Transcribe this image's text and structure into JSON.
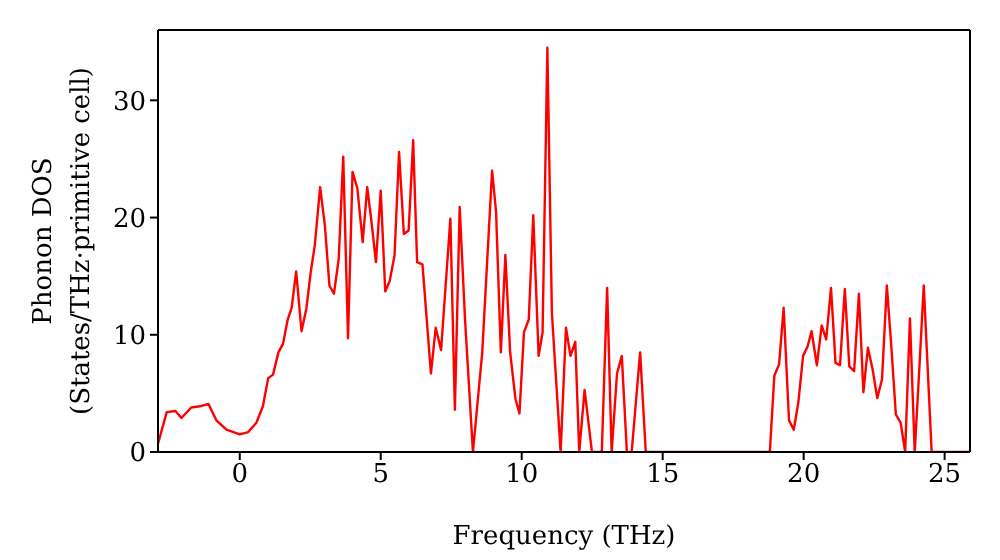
{
  "chart_data": {
    "type": "line",
    "xlabel": "Frequency (THz)",
    "ylabel": "Phonon DOS\n(States/THz·primitive cell)",
    "xlim": [
      -2.9,
      25.9
    ],
    "ylim": [
      0,
      36
    ],
    "xticks": [
      0,
      5,
      10,
      15,
      20,
      25
    ],
    "yticks": [
      0,
      10,
      20,
      30
    ],
    "marker": "none",
    "line_style": "solid",
    "series": [
      {
        "color": "#ff0000",
        "x": [
          -2.9,
          -2.59,
          -2.28,
          -2.07,
          -1.72,
          -1.41,
          -1.11,
          -0.83,
          -0.47,
          0,
          0.3,
          0.59,
          0.82,
          1.01,
          1.18,
          1.37,
          1.53,
          1.7,
          1.84,
          2.0,
          2.19,
          2.36,
          2.52,
          2.66,
          2.85,
          3.02,
          3.18,
          3.34,
          3.51,
          3.67,
          3.84,
          4.0,
          4.17,
          4.36,
          4.52,
          4.66,
          4.83,
          5.0,
          5.16,
          5.32,
          5.49,
          5.65,
          5.82,
          5.99,
          6.15,
          6.29,
          6.48,
          6.78,
          6.95,
          7.14,
          7.47,
          7.63,
          7.8,
          7.99,
          8.27,
          8.6,
          8.95,
          9.09,
          9.26,
          9.42,
          9.59,
          9.78,
          9.92,
          10.08,
          10.25,
          10.41,
          10.6,
          10.74,
          10.91,
          11.07,
          11.38,
          11.57,
          11.73,
          11.9,
          12.04,
          12.23,
          12.49,
          12.84,
          13.03,
          13.19,
          13.38,
          13.55,
          13.73,
          13.9,
          14.2,
          14.4,
          18.8,
          18.96,
          19.13,
          19.29,
          19.48,
          19.65,
          19.81,
          19.98,
          20.14,
          20.28,
          20.47,
          20.64,
          20.8,
          20.97,
          21.13,
          21.29,
          21.46,
          21.62,
          21.79,
          21.96,
          22.12,
          22.28,
          22.45,
          22.61,
          22.78,
          22.95,
          23.11,
          23.27,
          23.44,
          23.6,
          23.77,
          23.94,
          24.1,
          24.26,
          24.54,
          25.9
        ],
        "values": [
          0.7,
          3.4,
          3.5,
          2.9,
          3.8,
          3.9,
          4.1,
          2.7,
          1.9,
          1.5,
          1.7,
          2.5,
          3.9,
          6.3,
          6.6,
          8.5,
          9.2,
          11.3,
          12.3,
          15.4,
          10.3,
          12.2,
          15.4,
          17.6,
          22.6,
          19.3,
          14.2,
          13.5,
          16.5,
          25.2,
          9.7,
          23.9,
          22.5,
          17.9,
          22.6,
          19.9,
          16.2,
          22.3,
          13.7,
          14.6,
          16.8,
          25.6,
          18.6,
          18.9,
          26.6,
          16.2,
          16.0,
          6.7,
          10.6,
          8.7,
          19.9,
          3.6,
          20.9,
          11.3,
          0,
          8.5,
          24.0,
          20.5,
          8.5,
          16.8,
          8.5,
          4.5,
          3.3,
          10.2,
          11.3,
          20.2,
          8.2,
          10.2,
          34.5,
          11.9,
          0,
          10.6,
          8.2,
          9.4,
          0,
          5.3,
          0,
          0,
          14.0,
          0,
          6.7,
          8.2,
          0,
          0,
          8.5,
          0,
          0,
          6.5,
          7.5,
          12.3,
          2.7,
          1.9,
          4.2,
          8.2,
          9.0,
          10.3,
          7.4,
          10.8,
          9.6,
          14.0,
          7.6,
          7.4,
          13.9,
          7.3,
          6.9,
          13.5,
          5.1,
          8.9,
          7.0,
          4.6,
          6.2,
          14.2,
          9.0,
          3.2,
          2.5,
          0,
          11.4,
          0,
          7.0,
          14.2,
          0,
          0
        ]
      }
    ]
  }
}
